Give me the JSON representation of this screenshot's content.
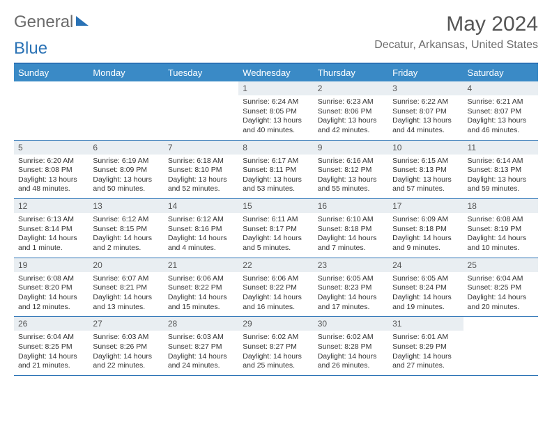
{
  "brand": {
    "word1": "General",
    "word2": "Blue"
  },
  "title": "May 2024",
  "location": "Decatur, Arkansas, United States",
  "dayHeaders": [
    "Sunday",
    "Monday",
    "Tuesday",
    "Wednesday",
    "Thursday",
    "Friday",
    "Saturday"
  ],
  "header_bg": "#3a8ac6",
  "header_border": "#2a72b5",
  "daynum_bg": "#e9eef2",
  "weeks": [
    [
      {
        "n": "",
        "sr": "",
        "ss": "",
        "dl": ""
      },
      {
        "n": "",
        "sr": "",
        "ss": "",
        "dl": ""
      },
      {
        "n": "",
        "sr": "",
        "ss": "",
        "dl": ""
      },
      {
        "n": "1",
        "sr": "6:24 AM",
        "ss": "8:05 PM",
        "dl": "13 hours and 40 minutes."
      },
      {
        "n": "2",
        "sr": "6:23 AM",
        "ss": "8:06 PM",
        "dl": "13 hours and 42 minutes."
      },
      {
        "n": "3",
        "sr": "6:22 AM",
        "ss": "8:07 PM",
        "dl": "13 hours and 44 minutes."
      },
      {
        "n": "4",
        "sr": "6:21 AM",
        "ss": "8:07 PM",
        "dl": "13 hours and 46 minutes."
      }
    ],
    [
      {
        "n": "5",
        "sr": "6:20 AM",
        "ss": "8:08 PM",
        "dl": "13 hours and 48 minutes."
      },
      {
        "n": "6",
        "sr": "6:19 AM",
        "ss": "8:09 PM",
        "dl": "13 hours and 50 minutes."
      },
      {
        "n": "7",
        "sr": "6:18 AM",
        "ss": "8:10 PM",
        "dl": "13 hours and 52 minutes."
      },
      {
        "n": "8",
        "sr": "6:17 AM",
        "ss": "8:11 PM",
        "dl": "13 hours and 53 minutes."
      },
      {
        "n": "9",
        "sr": "6:16 AM",
        "ss": "8:12 PM",
        "dl": "13 hours and 55 minutes."
      },
      {
        "n": "10",
        "sr": "6:15 AM",
        "ss": "8:13 PM",
        "dl": "13 hours and 57 minutes."
      },
      {
        "n": "11",
        "sr": "6:14 AM",
        "ss": "8:13 PM",
        "dl": "13 hours and 59 minutes."
      }
    ],
    [
      {
        "n": "12",
        "sr": "6:13 AM",
        "ss": "8:14 PM",
        "dl": "14 hours and 1 minute."
      },
      {
        "n": "13",
        "sr": "6:12 AM",
        "ss": "8:15 PM",
        "dl": "14 hours and 2 minutes."
      },
      {
        "n": "14",
        "sr": "6:12 AM",
        "ss": "8:16 PM",
        "dl": "14 hours and 4 minutes."
      },
      {
        "n": "15",
        "sr": "6:11 AM",
        "ss": "8:17 PM",
        "dl": "14 hours and 5 minutes."
      },
      {
        "n": "16",
        "sr": "6:10 AM",
        "ss": "8:18 PM",
        "dl": "14 hours and 7 minutes."
      },
      {
        "n": "17",
        "sr": "6:09 AM",
        "ss": "8:18 PM",
        "dl": "14 hours and 9 minutes."
      },
      {
        "n": "18",
        "sr": "6:08 AM",
        "ss": "8:19 PM",
        "dl": "14 hours and 10 minutes."
      }
    ],
    [
      {
        "n": "19",
        "sr": "6:08 AM",
        "ss": "8:20 PM",
        "dl": "14 hours and 12 minutes."
      },
      {
        "n": "20",
        "sr": "6:07 AM",
        "ss": "8:21 PM",
        "dl": "14 hours and 13 minutes."
      },
      {
        "n": "21",
        "sr": "6:06 AM",
        "ss": "8:22 PM",
        "dl": "14 hours and 15 minutes."
      },
      {
        "n": "22",
        "sr": "6:06 AM",
        "ss": "8:22 PM",
        "dl": "14 hours and 16 minutes."
      },
      {
        "n": "23",
        "sr": "6:05 AM",
        "ss": "8:23 PM",
        "dl": "14 hours and 17 minutes."
      },
      {
        "n": "24",
        "sr": "6:05 AM",
        "ss": "8:24 PM",
        "dl": "14 hours and 19 minutes."
      },
      {
        "n": "25",
        "sr": "6:04 AM",
        "ss": "8:25 PM",
        "dl": "14 hours and 20 minutes."
      }
    ],
    [
      {
        "n": "26",
        "sr": "6:04 AM",
        "ss": "8:25 PM",
        "dl": "14 hours and 21 minutes."
      },
      {
        "n": "27",
        "sr": "6:03 AM",
        "ss": "8:26 PM",
        "dl": "14 hours and 22 minutes."
      },
      {
        "n": "28",
        "sr": "6:03 AM",
        "ss": "8:27 PM",
        "dl": "14 hours and 24 minutes."
      },
      {
        "n": "29",
        "sr": "6:02 AM",
        "ss": "8:27 PM",
        "dl": "14 hours and 25 minutes."
      },
      {
        "n": "30",
        "sr": "6:02 AM",
        "ss": "8:28 PM",
        "dl": "14 hours and 26 minutes."
      },
      {
        "n": "31",
        "sr": "6:01 AM",
        "ss": "8:29 PM",
        "dl": "14 hours and 27 minutes."
      },
      {
        "n": "",
        "sr": "",
        "ss": "",
        "dl": ""
      }
    ]
  ],
  "labels": {
    "sunrise": "Sunrise: ",
    "sunset": "Sunset: ",
    "daylight": "Daylight: "
  }
}
